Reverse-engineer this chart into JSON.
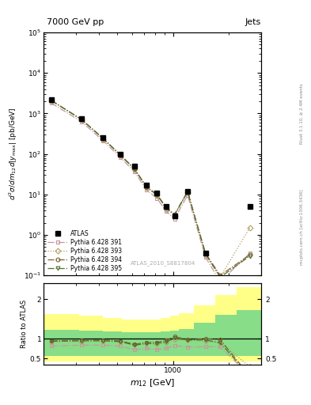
{
  "title_left": "7000 GeV pp",
  "title_right": "Jets",
  "ylabel_main": "$d^2\\sigma/dm_{12}d|y_{\\mathrm{max}}|$ [pb/GeV]",
  "ylabel_ratio": "Ratio to ATLAS",
  "xlabel": "$m_{12}$ [GeV]",
  "watermark": "ATLAS_2010_S8817804",
  "right_label": "mcplots.cern.ch [arXiv:1306.3436]",
  "right_label2": "Rivet 3.1.10, ≥ 2.4M events",
  "atlas_x": [
    220,
    320,
    420,
    520,
    620,
    720,
    820,
    920,
    1020,
    1200,
    1500,
    2600
  ],
  "atlas_y": [
    2200,
    750,
    250,
    100,
    50,
    17,
    11,
    5.0,
    3.0,
    12.0,
    0.35,
    5.0
  ],
  "py391_x": [
    220,
    320,
    420,
    520,
    620,
    720,
    820,
    920,
    1020,
    1200,
    1500,
    1800,
    2600
  ],
  "py391_y": [
    1800,
    630,
    210,
    82,
    36,
    13,
    8.0,
    3.8,
    2.5,
    9.5,
    0.28,
    0.07,
    0.35
  ],
  "py393_x": [
    220,
    320,
    420,
    520,
    620,
    720,
    820,
    920,
    1020,
    1200,
    1500,
    1800,
    2600
  ],
  "py393_y": [
    2050,
    700,
    235,
    92,
    42,
    15,
    9.5,
    4.5,
    3.0,
    11.5,
    0.33,
    0.09,
    1.5
  ],
  "py394_x": [
    220,
    320,
    420,
    520,
    620,
    720,
    820,
    920,
    1020,
    1200,
    1500,
    1800,
    2600
  ],
  "py394_y": [
    2100,
    720,
    242,
    95,
    43,
    15.5,
    10.0,
    4.8,
    3.2,
    11.8,
    0.35,
    0.1,
    0.32
  ],
  "py395_x": [
    220,
    320,
    420,
    520,
    620,
    720,
    820,
    920,
    1020,
    1200,
    1500,
    1800,
    2600
  ],
  "py395_y": [
    2080,
    710,
    238,
    93,
    42,
    15,
    9.8,
    4.6,
    3.1,
    11.6,
    0.34,
    0.09,
    0.3
  ],
  "color_391": "#c896a0",
  "color_393": "#b0a060",
  "color_394": "#806030",
  "color_395": "#507030",
  "ratio_391_x": [
    220,
    320,
    420,
    520,
    620,
    720,
    820,
    920,
    1020,
    1200,
    1500,
    1800,
    2600
  ],
  "ratio_391_y": [
    0.82,
    0.84,
    0.84,
    0.82,
    0.72,
    0.76,
    0.73,
    0.76,
    0.83,
    0.79,
    0.8,
    0.8,
    0.07
  ],
  "ratio_393_x": [
    220,
    320,
    420,
    520,
    620,
    720,
    820,
    920,
    1020,
    1200,
    1500,
    1800,
    2600
  ],
  "ratio_393_y": [
    0.93,
    0.93,
    0.94,
    0.92,
    0.84,
    0.88,
    0.86,
    0.9,
    0.98,
    0.96,
    0.94,
    0.9,
    0.3
  ],
  "ratio_394_x": [
    220,
    320,
    420,
    520,
    620,
    720,
    820,
    920,
    1020,
    1200,
    1500,
    1800,
    2600
  ],
  "ratio_394_y": [
    0.95,
    0.96,
    0.97,
    0.95,
    0.86,
    0.91,
    0.91,
    0.96,
    1.06,
    0.98,
    1.0,
    0.98,
    0.06
  ],
  "ratio_395_x": [
    220,
    320,
    420,
    520,
    620,
    720,
    820,
    920,
    1020,
    1200,
    1500,
    1800,
    2600
  ],
  "ratio_395_y": [
    0.94,
    0.95,
    0.95,
    0.93,
    0.84,
    0.88,
    0.89,
    0.92,
    1.02,
    0.97,
    0.97,
    0.9,
    0.06
  ],
  "yellow_band_edges": [
    200,
    310,
    420,
    530,
    640,
    750,
    860,
    970,
    1080,
    1300,
    1700,
    2200,
    3000
  ],
  "yellow_band_lo": [
    0.42,
    0.42,
    0.42,
    0.42,
    0.42,
    0.42,
    0.42,
    0.42,
    0.42,
    0.42,
    0.42,
    0.42
  ],
  "yellow_band_hi": [
    1.62,
    1.58,
    1.52,
    1.48,
    1.48,
    1.48,
    1.52,
    1.58,
    1.65,
    1.85,
    2.1,
    2.3
  ],
  "green_band_edges": [
    200,
    310,
    420,
    530,
    640,
    750,
    860,
    970,
    1080,
    1300,
    1700,
    2200,
    3000
  ],
  "green_band_lo": [
    0.56,
    0.56,
    0.56,
    0.56,
    0.56,
    0.56,
    0.56,
    0.56,
    0.56,
    0.56,
    0.56,
    0.56
  ],
  "green_band_hi": [
    1.22,
    1.2,
    1.18,
    1.16,
    1.16,
    1.16,
    1.18,
    1.2,
    1.25,
    1.4,
    1.6,
    1.72
  ],
  "xlim": [
    200,
    3000
  ],
  "ylim_main": [
    0.1,
    100000
  ],
  "ylim_ratio": [
    0.35,
    2.4
  ]
}
